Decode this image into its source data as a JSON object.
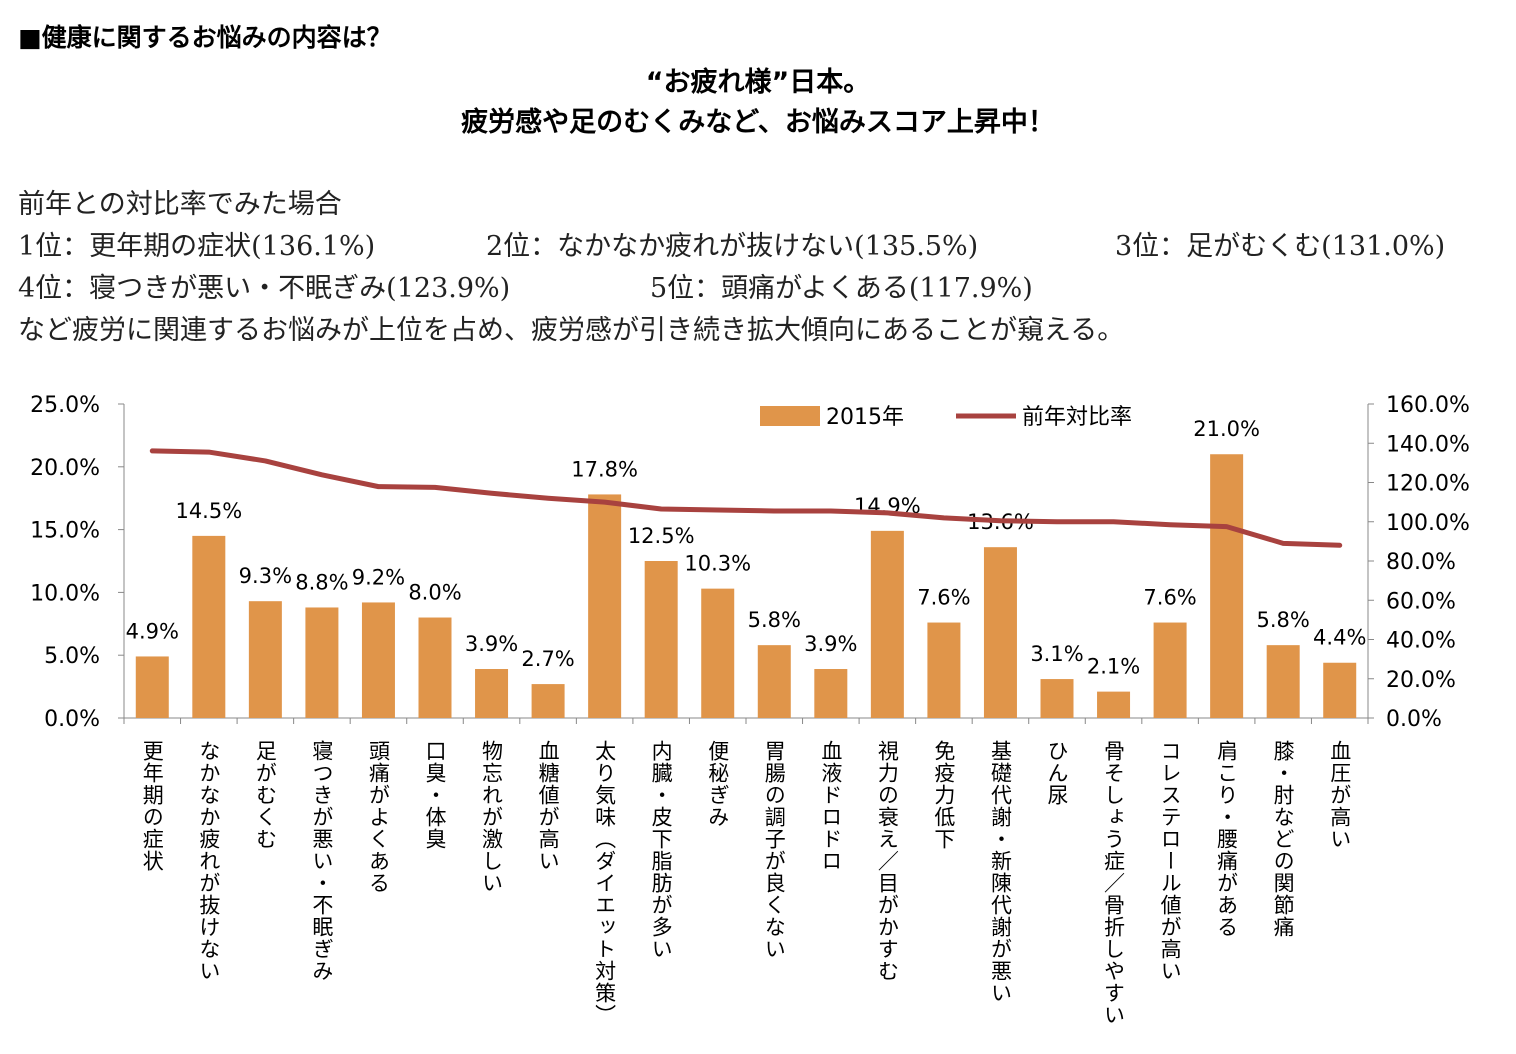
{
  "heading": "■健康に関するお悩みの内容は？",
  "title_line1": "“お疲れ様”日本。",
  "title_line2": "疲労感や足のむくみなど、お悩みスコア上昇中！",
  "summary": {
    "intro": "前年との対比率でみた場合",
    "rank1": "1位：更年期の症状(136.1%)",
    "rank2": "2位：なかなか疲れが抜けない(135.5%)",
    "rank3": "3位：足がむくむ(131.0%)",
    "rank4": "4位：寝つきが悪い・不眠ぎみ(123.9%)",
    "rank5": "5位：頭痛がよくある(117.9%)",
    "conclusion": "など疲労に関連するお悩みが上位を占め、疲労感が引き続き拡大傾向にあることが窺える。"
  },
  "chart_data": {
    "type": "bar",
    "categories": [
      "更年期の症状",
      "なかなか疲れが抜けない",
      "足がむくむ",
      "寝つきが悪い・不眠ぎみ",
      "頭痛がよくある",
      "口臭・体臭",
      "物忘れが激しい",
      "血糖値が高い",
      "太り気味（ダイエット対策）",
      "内臓・皮下脂肪が多い",
      "便秘ぎみ",
      "胃腸の調子が良くない",
      "血液ドロドロ",
      "視力の衰え／目がかすむ",
      "免疫力低下",
      "基礎代謝・新陳代謝が悪い",
      "ひん尿",
      "骨そしょう症／骨折しやすい",
      "コレステロール値が高い",
      "肩こり・腰痛がある",
      "膝・肘などの関節痛",
      "血圧が高い"
    ],
    "series": [
      {
        "name": "2015年",
        "type": "bar",
        "axis": "left",
        "color": "#E0954A",
        "values": [
          4.9,
          14.5,
          9.3,
          8.8,
          9.2,
          8.0,
          3.9,
          2.7,
          17.8,
          12.5,
          10.3,
          5.8,
          3.9,
          14.9,
          7.6,
          13.6,
          3.1,
          2.1,
          7.6,
          21.0,
          5.8,
          4.4
        ],
        "labels": [
          "4.9%",
          "14.5%",
          "9.3%",
          "8.8%",
          "9.2%",
          "8.0%",
          "3.9%",
          "2.7%",
          "17.8%",
          "12.5%",
          "10.3%",
          "5.8%",
          "3.9%",
          "14.9%",
          "7.6%",
          "13.6%",
          "3.1%",
          "2.1%",
          "7.6%",
          "21.0%",
          "5.8%",
          "4.4%"
        ]
      },
      {
        "name": "前年対比率",
        "type": "line",
        "axis": "right",
        "color": "#A8423F",
        "values": [
          136.1,
          135.5,
          131.0,
          123.9,
          117.9,
          117.5,
          114.5,
          112,
          110,
          106.5,
          106,
          105.5,
          105.5,
          104.5,
          102,
          100.5,
          100,
          100,
          98.5,
          97.5,
          89,
          88
        ]
      }
    ],
    "ylim_left": [
      0,
      25
    ],
    "ylim_right": [
      0,
      160
    ],
    "left_ticks": [
      "0.0%",
      "5.0%",
      "10.0%",
      "15.0%",
      "20.0%",
      "25.0%"
    ],
    "right_ticks": [
      "0.0%",
      "20.0%",
      "40.0%",
      "60.0%",
      "80.0%",
      "100.0%",
      "120.0%",
      "140.0%",
      "160.0%"
    ],
    "legend_position": "top-right",
    "grid": false
  }
}
